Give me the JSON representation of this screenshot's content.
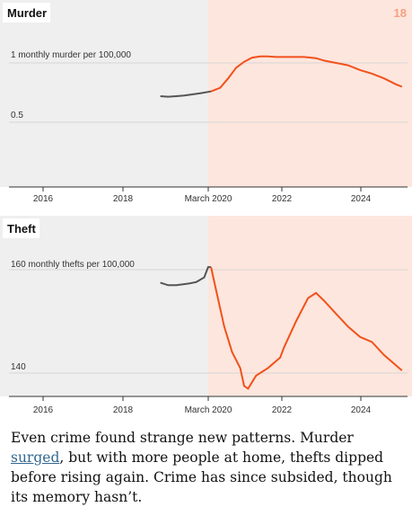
{
  "page_number": "18",
  "colors": {
    "pre_bg": "#efefef",
    "post_bg": "#fde6dd",
    "pre_line": "#555555",
    "post_line": "#f2511b",
    "page_number": "#f4a184",
    "link": "#326891"
  },
  "chart_data": [
    {
      "type": "line",
      "title": "Murder",
      "x_ticks": [
        "2016",
        "2018",
        "March 2020",
        "2022",
        "2024"
      ],
      "y_ticks": [
        {
          "value": 1,
          "label": "1 monthly murder per 100,000"
        },
        {
          "value": 0.5,
          "label": "0.5"
        }
      ],
      "xlim": [
        2015.0,
        2025.0
      ],
      "ylim": [
        0.2,
        1.2
      ],
      "split_at": 2020.17,
      "series": [
        {
          "segment": "before",
          "x": [
            2018.9,
            2019.1,
            2019.3,
            2019.5,
            2019.7,
            2019.9,
            2020.17
          ],
          "y": [
            0.72,
            0.715,
            0.72,
            0.725,
            0.735,
            0.745,
            0.76
          ]
        },
        {
          "segment": "after",
          "x": [
            2020.17,
            2020.4,
            2020.6,
            2020.8,
            2021.0,
            2021.2,
            2021.4,
            2021.6,
            2021.8,
            2022.0,
            2022.2,
            2022.5,
            2022.8,
            2023.0,
            2023.3,
            2023.6,
            2023.9,
            2024.2,
            2024.5,
            2024.8,
            2024.95
          ],
          "y": [
            0.76,
            0.79,
            0.87,
            0.96,
            1.01,
            1.045,
            1.055,
            1.055,
            1.05,
            1.05,
            1.05,
            1.05,
            1.04,
            1.02,
            1.0,
            0.98,
            0.94,
            0.91,
            0.87,
            0.82,
            0.8
          ]
        }
      ]
    },
    {
      "type": "line",
      "title": "Theft",
      "x_ticks": [
        "2016",
        "2018",
        "March 2020",
        "2022",
        "2024"
      ],
      "y_ticks": [
        {
          "value": 160,
          "label": "160 monthly thefts per 100,000"
        },
        {
          "value": 140,
          "label": "140"
        }
      ],
      "xlim": [
        2015.0,
        2025.0
      ],
      "ylim": [
        136,
        164
      ],
      "split_at": 2020.17,
      "series": [
        {
          "segment": "before",
          "x": [
            2018.9,
            2019.1,
            2019.3,
            2019.6,
            2019.8,
            2020.0,
            2020.1,
            2020.17
          ],
          "y": [
            157.5,
            157,
            157,
            157.3,
            157.6,
            158.5,
            160.5,
            160.5
          ],
          "label": "160 monthly thefts per 100,000"
        },
        {
          "segment": "after",
          "x": [
            2020.17,
            2020.3,
            2020.5,
            2020.7,
            2020.9,
            2021.0,
            2021.1,
            2021.3,
            2021.6,
            2021.9,
            2022.0,
            2022.3,
            2022.6,
            2022.8,
            2023.0,
            2023.3,
            2023.6,
            2023.9,
            2024.2,
            2024.5,
            2024.8,
            2024.95
          ],
          "y": [
            160.5,
            156,
            149,
            144,
            141,
            137.5,
            137,
            139.5,
            141,
            143,
            145,
            150,
            154.5,
            155.5,
            154,
            151.5,
            149,
            147,
            146,
            143.5,
            141.5,
            140.5
          ]
        }
      ]
    }
  ],
  "caption": {
    "before": "Even crime found strange new patterns. Murder ",
    "link": "surged",
    "after": ", but with more people at home, thefts dipped before rising again. Crime has since subsided, though its memory hasn’t."
  }
}
